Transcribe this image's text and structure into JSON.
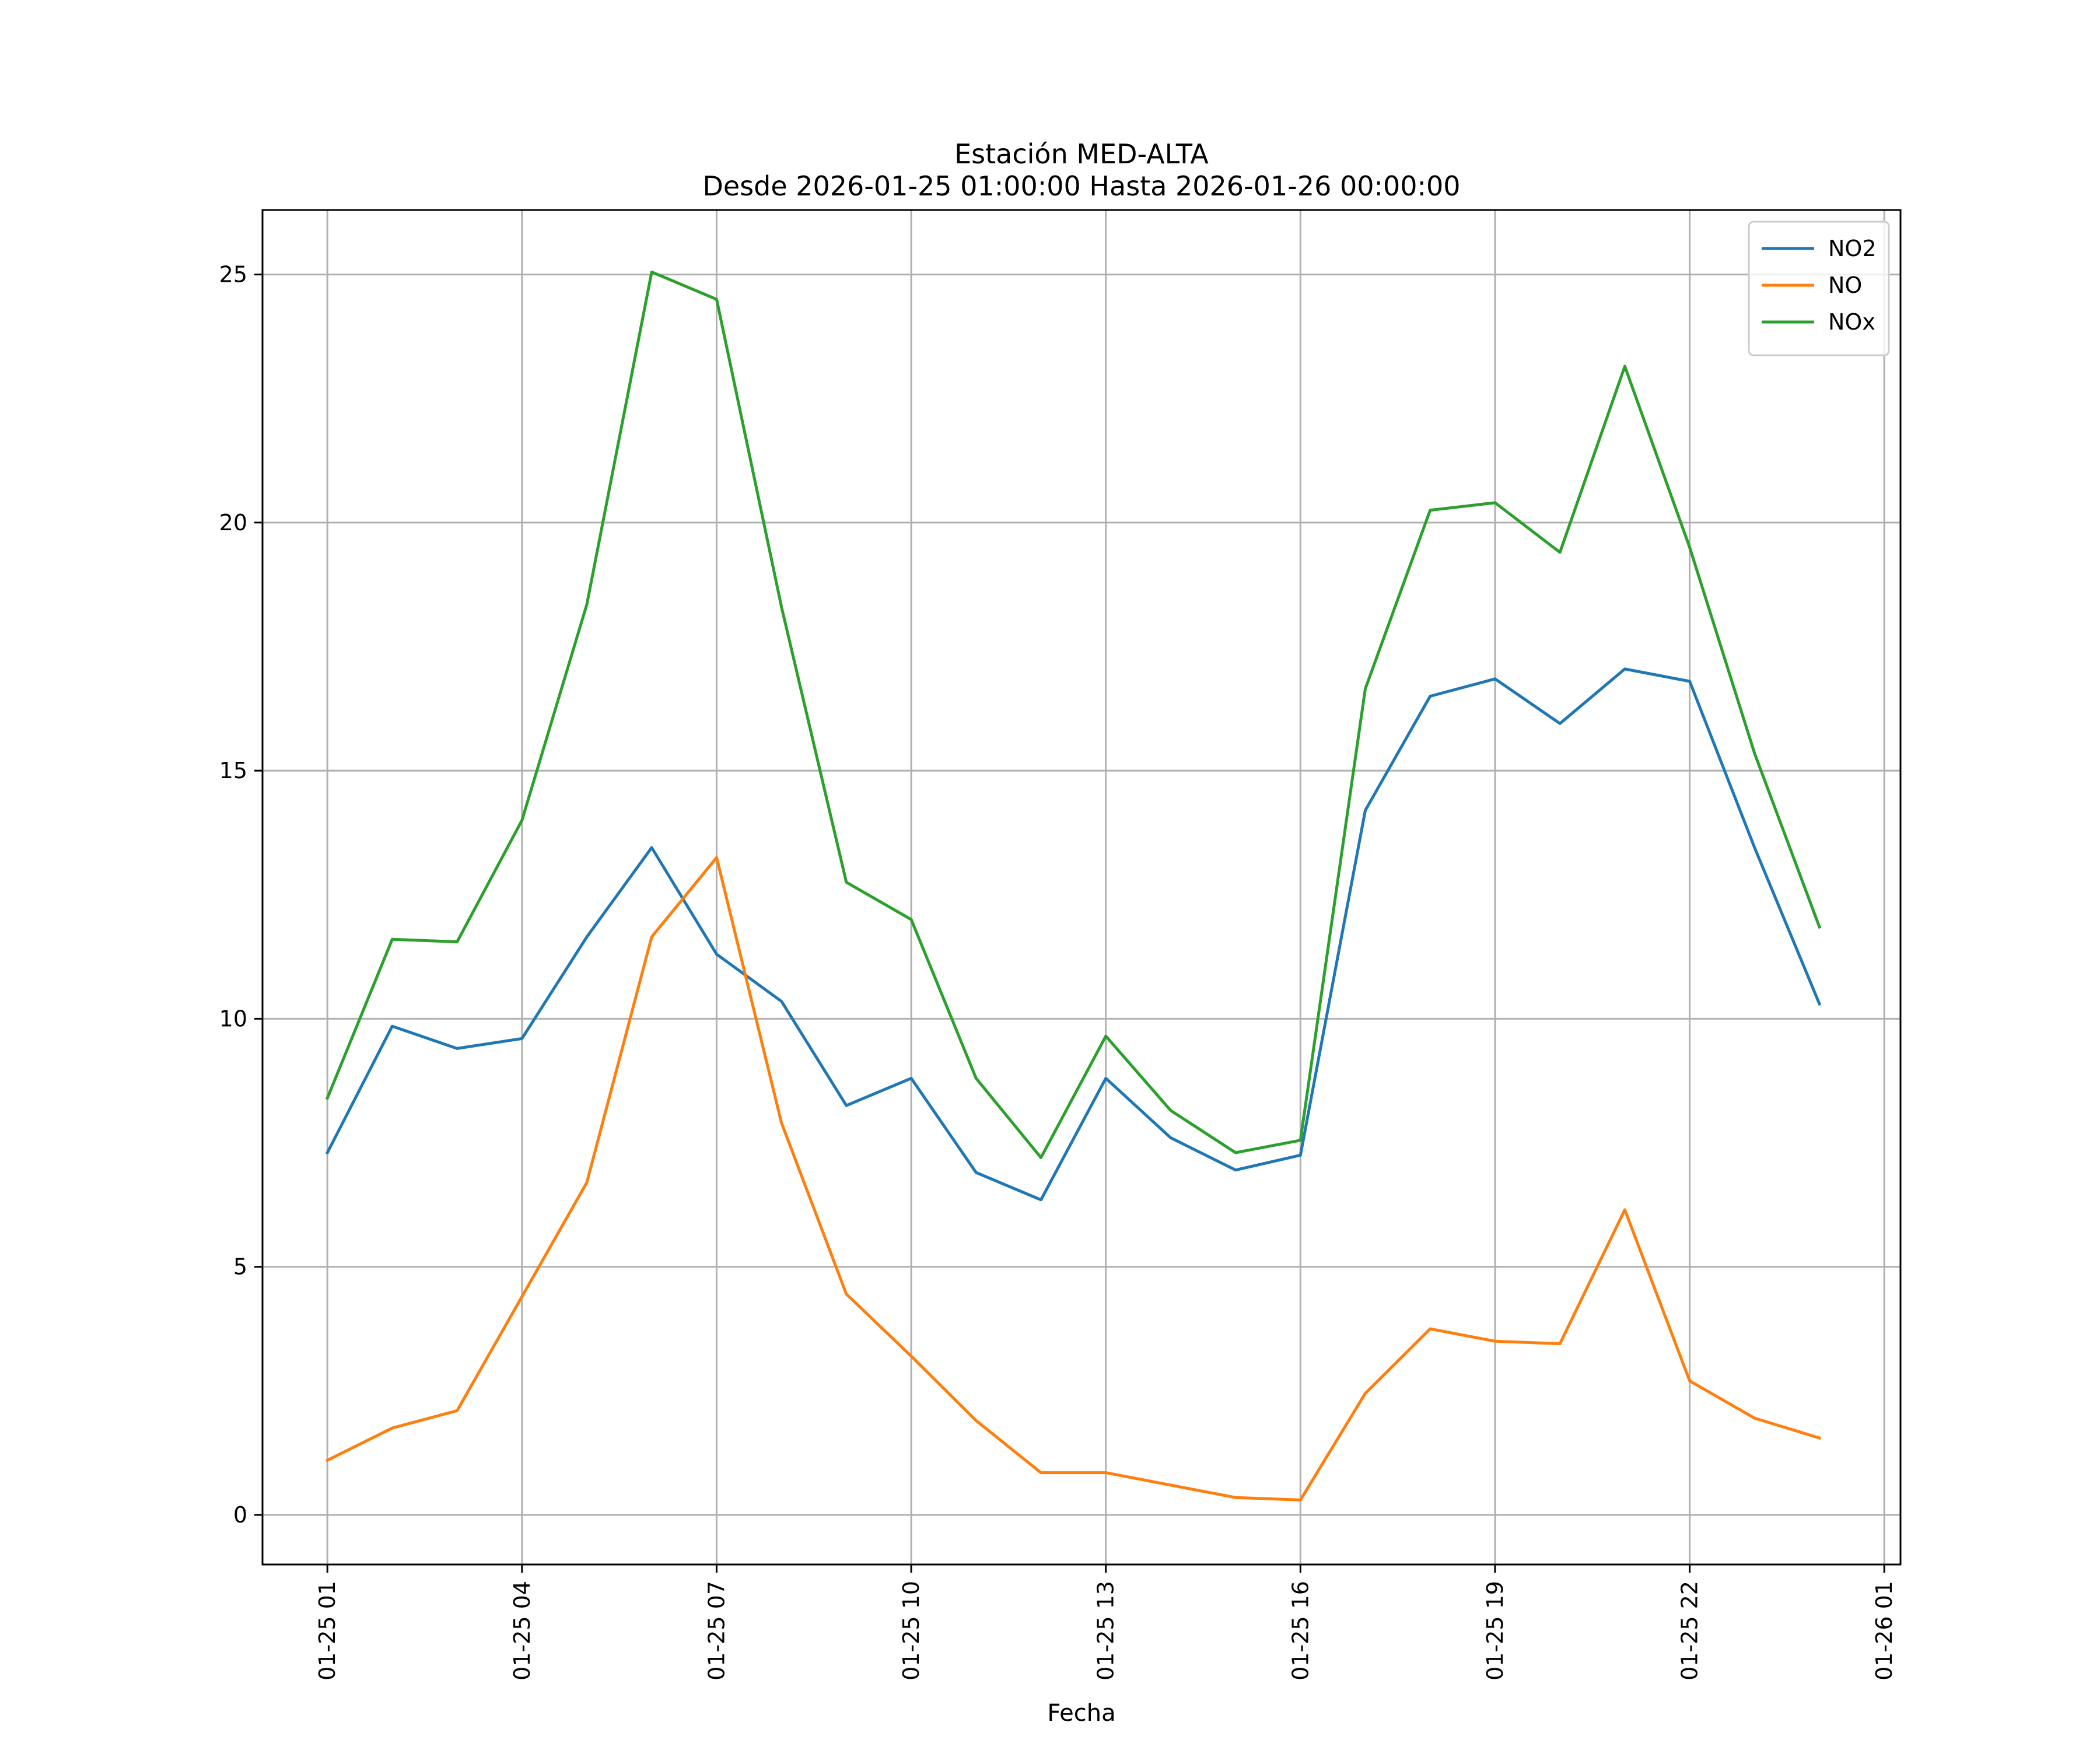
{
  "chart_data": {
    "type": "line",
    "title": "Estación MED-ALTA",
    "subtitle": "Desde 2026-01-25 01:00:00 Hasta 2026-01-26 00:00:00",
    "xlabel": "Fecha",
    "ylabel": "",
    "x": [
      "2026-01-25 01:00",
      "2026-01-25 02:00",
      "2026-01-25 03:00",
      "2026-01-25 04:00",
      "2026-01-25 05:00",
      "2026-01-25 06:00",
      "2026-01-25 07:00",
      "2026-01-25 08:00",
      "2026-01-25 09:00",
      "2026-01-25 10:00",
      "2026-01-25 11:00",
      "2026-01-25 12:00",
      "2026-01-25 13:00",
      "2026-01-25 14:00",
      "2026-01-25 15:00",
      "2026-01-25 16:00",
      "2026-01-25 17:00",
      "2026-01-25 18:00",
      "2026-01-25 19:00",
      "2026-01-25 20:00",
      "2026-01-25 21:00",
      "2026-01-25 22:00",
      "2026-01-25 23:00",
      "2026-01-26 00:00"
    ],
    "xlim": [
      "2026-01-25 00:00",
      "2026-01-26 01:15"
    ],
    "ylim": [
      -1,
      26.3
    ],
    "x_ticks": [
      "2026-01-25 01:00",
      "2026-01-25 04:00",
      "2026-01-25 07:00",
      "2026-01-25 10:00",
      "2026-01-25 13:00",
      "2026-01-25 16:00",
      "2026-01-25 19:00",
      "2026-01-25 22:00",
      "2026-01-26 01:00"
    ],
    "x_tick_labels": [
      "01-25 01",
      "01-25 04",
      "01-25 07",
      "01-25 10",
      "01-25 13",
      "01-25 16",
      "01-25 19",
      "01-25 22",
      "01-26 01"
    ],
    "y_ticks": [
      0,
      5,
      10,
      15,
      20,
      25
    ],
    "y_tick_labels": [
      "0",
      "5",
      "10",
      "15",
      "20",
      "25"
    ],
    "grid": true,
    "legend_position": "top-right",
    "series": [
      {
        "name": "NO2",
        "color": "#1f77b4",
        "values": [
          7.3,
          9.85,
          9.4,
          9.6,
          11.65,
          13.45,
          11.3,
          10.35,
          8.25,
          8.8,
          6.9,
          6.35,
          8.8,
          7.6,
          6.95,
          7.25,
          14.2,
          16.5,
          16.85,
          15.95,
          17.05,
          16.8,
          13.45,
          10.3
        ]
      },
      {
        "name": "NO",
        "color": "#ff7f0e",
        "values": [
          1.1,
          1.75,
          2.1,
          4.4,
          6.7,
          11.65,
          13.25,
          7.9,
          4.45,
          3.2,
          1.9,
          0.85,
          0.85,
          0.6,
          0.35,
          0.3,
          2.45,
          3.75,
          3.5,
          3.45,
          6.15,
          2.7,
          1.95,
          1.55
        ]
      },
      {
        "name": "NOx",
        "color": "#2ca02c",
        "values": [
          8.4,
          11.6,
          11.55,
          14.0,
          18.35,
          25.05,
          24.5,
          18.3,
          12.75,
          12.0,
          8.8,
          7.2,
          9.65,
          8.15,
          7.3,
          7.55,
          16.65,
          20.25,
          20.4,
          19.4,
          23.15,
          19.5,
          15.35,
          11.85
        ]
      }
    ]
  }
}
